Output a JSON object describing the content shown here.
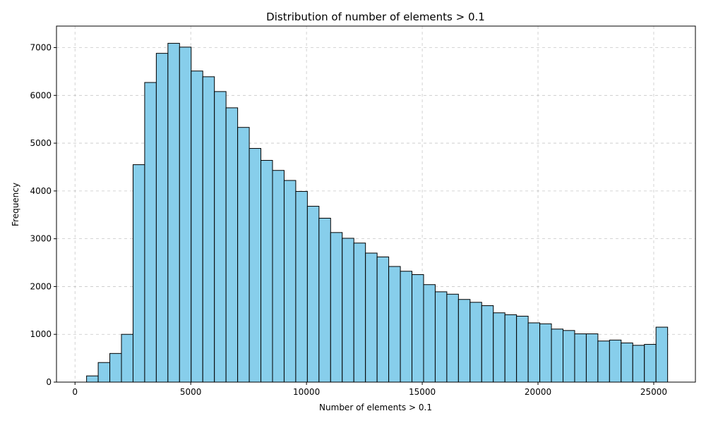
{
  "chart_data": {
    "type": "bar",
    "title": "Distribution of number of elements > 0.1",
    "xlabel": "Number of elements > 0.1",
    "ylabel": "Frequency",
    "xlim": [
      -800,
      26800
    ],
    "ylim": [
      0,
      7450
    ],
    "xticks": [
      0,
      5000,
      10000,
      15000,
      20000,
      25000
    ],
    "yticks": [
      0,
      1000,
      2000,
      3000,
      4000,
      5000,
      6000,
      7000
    ],
    "grid": true,
    "bar_color": "#87ceeb",
    "edge_color": "#000000",
    "bin_start": 500,
    "bin_width": 502,
    "values": [
      130,
      410,
      600,
      1000,
      4550,
      6270,
      6880,
      7090,
      7010,
      6510,
      6390,
      6080,
      5740,
      5330,
      4890,
      4640,
      4430,
      4220,
      3990,
      3680,
      3430,
      3130,
      3010,
      2910,
      2700,
      2620,
      2420,
      2320,
      2250,
      2040,
      1890,
      1840,
      1730,
      1670,
      1600,
      1450,
      1410,
      1380,
      1240,
      1220,
      1110,
      1080,
      1010,
      1010,
      860,
      880,
      820,
      770,
      790,
      1150
    ]
  }
}
